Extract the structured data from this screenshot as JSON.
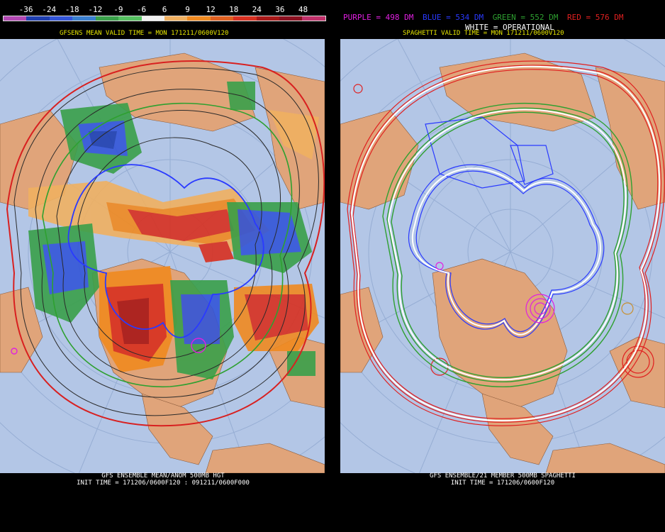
{
  "left_panel": {
    "scale_labels": [
      "-36",
      "-24",
      "-18",
      "-12",
      "-9",
      "-6",
      "6",
      "9",
      "12",
      "18",
      "24",
      "36",
      "48"
    ],
    "scale_colors": [
      "#b347b3",
      "#1f3fb0",
      "#3355d8",
      "#3a7fd0",
      "#3aa04a",
      "#55c060",
      "#f0f0f0",
      "#f0b060",
      "#f08a20",
      "#e06020",
      "#d83020",
      "#a81818",
      "#8a1020",
      "#c0306a"
    ],
    "title": "GFSENS MEAN VALID TIME = MON 171211/0600V120",
    "footer_line1": "GFS ENSEMBLE MEAN/ANOM 500MB HGT",
    "footer_line2": "INIT TIME = 171206/0600F120 : 091211/0600F000"
  },
  "right_panel": {
    "legend": [
      {
        "text": "PURPLE = 498 DM",
        "color": "#e020e0"
      },
      {
        "text": "BLUE = 534 DM",
        "color": "#2a3aff"
      },
      {
        "text": "GREEN = 552 DM",
        "color": "#2ea030"
      },
      {
        "text": "RED = 576 DM",
        "color": "#e02020"
      }
    ],
    "operational_label": "WHITE = OPERATIONAL",
    "title": "SPAGHETTI VALID TIME = MON 171211/0600V120",
    "footer_line1": "GFS ENSEMBLE/21 MEMBER 500MB SPAGHETTI",
    "footer_line2": "INIT TIME = 171206/0600F120"
  },
  "colors": {
    "ocean": "#b3c6e6",
    "land": "#e0a47a",
    "title_yellow": "#e8e800"
  }
}
